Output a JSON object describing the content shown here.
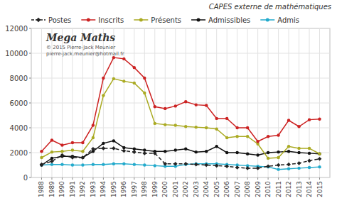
{
  "chart_data": {
    "type": "line",
    "title": "CAPES externe de mathématiques",
    "annotations": [
      "Mega Maths",
      "© 2015 Pierre-Jack Meunier",
      "pierre-jack.meunier@hotmail.fr"
    ],
    "x": [
      1988,
      1989,
      1990,
      1991,
      1992,
      1993,
      1994,
      1995,
      1996,
      1997,
      1998,
      1999,
      2000,
      2001,
      2002,
      2003,
      2004,
      2005,
      2006,
      2007,
      2008,
      2009,
      2010,
      2011,
      2012,
      2013,
      2014,
      2015
    ],
    "xlim": [
      1987,
      2016
    ],
    "xticks": [
      1988,
      1989,
      1990,
      1991,
      1992,
      1993,
      1994,
      1995,
      1996,
      1997,
      1998,
      1999,
      2000,
      2001,
      2002,
      2003,
      2004,
      2005,
      2006,
      2007,
      2008,
      2009,
      2010,
      2011,
      2012,
      2013,
      2014,
      2015
    ],
    "ylim": [
      0,
      12000
    ],
    "yticks": [
      0,
      2000,
      4000,
      6000,
      8000,
      10000,
      12000
    ],
    "grid": true,
    "legend": "top",
    "series": [
      {
        "name": "Postes",
        "color": "#222222",
        "marker": "diamond",
        "line_style": "dashed",
        "values": [
          1050,
          1300,
          1800,
          1600,
          1600,
          2300,
          2350,
          2350,
          2150,
          2050,
          1950,
          1950,
          1100,
          1100,
          1100,
          1050,
          1000,
          950,
          900,
          800,
          750,
          750,
          900,
          1000,
          1050,
          1150,
          1350,
          1500
        ]
      },
      {
        "name": "Inscrits",
        "color": "#cc2222",
        "marker": "circle",
        "line_style": "solid",
        "values": [
          2100,
          3000,
          2600,
          2800,
          2800,
          4200,
          8000,
          9650,
          9550,
          8850,
          8000,
          5700,
          5550,
          5750,
          6100,
          5850,
          5800,
          4750,
          4750,
          4000,
          4000,
          2900,
          3300,
          3400,
          4600,
          4100,
          4650,
          4700
        ]
      },
      {
        "name": "Présents",
        "color": "#aaaa22",
        "marker": "circle",
        "line_style": "solid",
        "values": [
          1600,
          2050,
          2100,
          2200,
          2100,
          3200,
          6600,
          7950,
          7750,
          7600,
          6800,
          4350,
          4250,
          4200,
          4100,
          4050,
          4000,
          3900,
          3200,
          3300,
          3300,
          2700,
          1550,
          1600,
          2500,
          2350,
          2350,
          1900
        ]
      },
      {
        "name": "Admissibles",
        "color": "#111111",
        "marker": "circle",
        "line_style": "solid",
        "values": [
          1000,
          1550,
          1700,
          1700,
          1600,
          2100,
          2750,
          2950,
          2400,
          2300,
          2200,
          2100,
          2100,
          2200,
          2300,
          2050,
          2100,
          2500,
          2000,
          2000,
          1900,
          1800,
          2000,
          2050,
          2100,
          2000,
          1950,
          1900
        ]
      },
      {
        "name": "Admis",
        "color": "#22aacc",
        "marker": "circle",
        "line_style": "solid",
        "values": [
          1000,
          1050,
          1050,
          1000,
          1000,
          1050,
          1050,
          1100,
          1100,
          1050,
          1000,
          950,
          900,
          900,
          1050,
          1100,
          1100,
          1100,
          1050,
          1000,
          950,
          900,
          850,
          650,
          700,
          750,
          800,
          850
        ]
      }
    ]
  }
}
